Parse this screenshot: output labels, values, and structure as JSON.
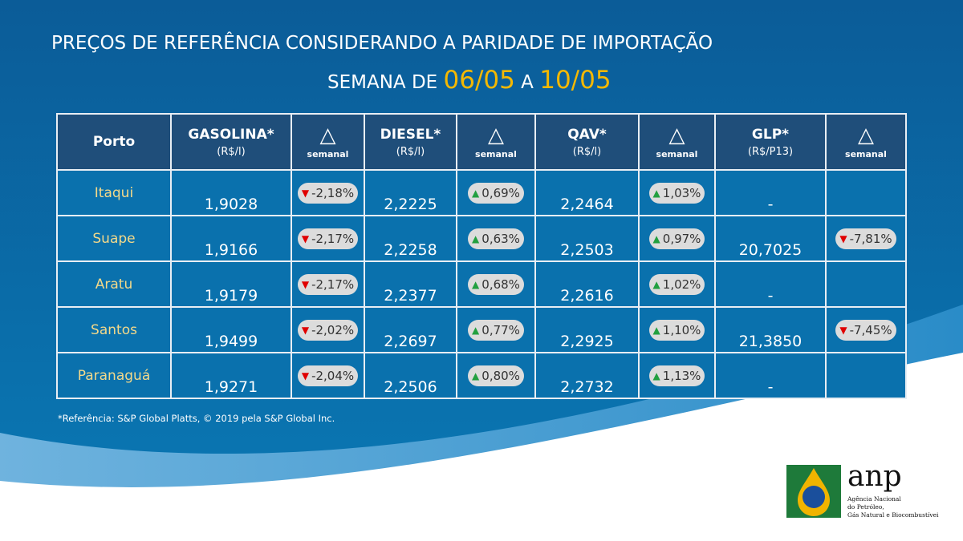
{
  "title": {
    "line1": "PREÇOS DE REFERÊNCIA CONSIDERANDO A PARIDADE DE IMPORTAÇÃO",
    "prefix": "SEMANA DE ",
    "start": "06/05",
    "mid": " A ",
    "end": "10/05"
  },
  "headers": {
    "porto": "Porto",
    "gasolina": "GASOLINA*",
    "gasolina_unit": "(R$/l)",
    "diesel": "DIESEL*",
    "diesel_unit": "(R$/l)",
    "qav": "QAV*",
    "qav_unit": "(R$/l)",
    "glp": "GLP*",
    "glp_unit": "(R$/P13)",
    "delta": "△",
    "semanal": "semanal"
  },
  "rows": [
    {
      "porto": "Itaqui",
      "gasolina": "1,9028",
      "gasolina_var": "-2,18%",
      "diesel": "2,2225",
      "diesel_var": "0,69%",
      "qav": "2,2464",
      "qav_var": "1,03%",
      "glp": "-",
      "glp_var": ""
    },
    {
      "porto": "Suape",
      "gasolina": "1,9166",
      "gasolina_var": "-2,17%",
      "diesel": "2,2258",
      "diesel_var": "0,63%",
      "qav": "2,2503",
      "qav_var": "0,97%",
      "glp": "20,7025",
      "glp_var": "-7,81%"
    },
    {
      "porto": "Aratu",
      "gasolina": "1,9179",
      "gasolina_var": "-2,17%",
      "diesel": "2,2377",
      "diesel_var": "0,68%",
      "qav": "2,2616",
      "qav_var": "1,02%",
      "glp": "-",
      "glp_var": ""
    },
    {
      "porto": "Santos",
      "gasolina": "1,9499",
      "gasolina_var": "-2,02%",
      "diesel": "2,2697",
      "diesel_var": "0,77%",
      "qav": "2,2925",
      "qav_var": "1,10%",
      "glp": "21,3850",
      "glp_var": "-7,45%"
    },
    {
      "porto": "Paranaguá",
      "gasolina": "1,9271",
      "gasolina_var": "-2,04%",
      "diesel": "2,2506",
      "diesel_var": "0,80%",
      "qav": "2,2732",
      "qav_var": "1,13%",
      "glp": "-",
      "glp_var": ""
    }
  ],
  "footnote": "*Referência: S&P Global Platts, © 2019 pela S&P Global Inc.",
  "logo": {
    "text": "anp",
    "subtitle": "Agência Nacional do Petróleo, Gás Natural e Biocombustíveis"
  },
  "colors": {
    "header": "#1f4e7a",
    "cell": "#0a71ad",
    "accent": "#f5b800",
    "down": "#e00000",
    "up": "#22a040"
  }
}
